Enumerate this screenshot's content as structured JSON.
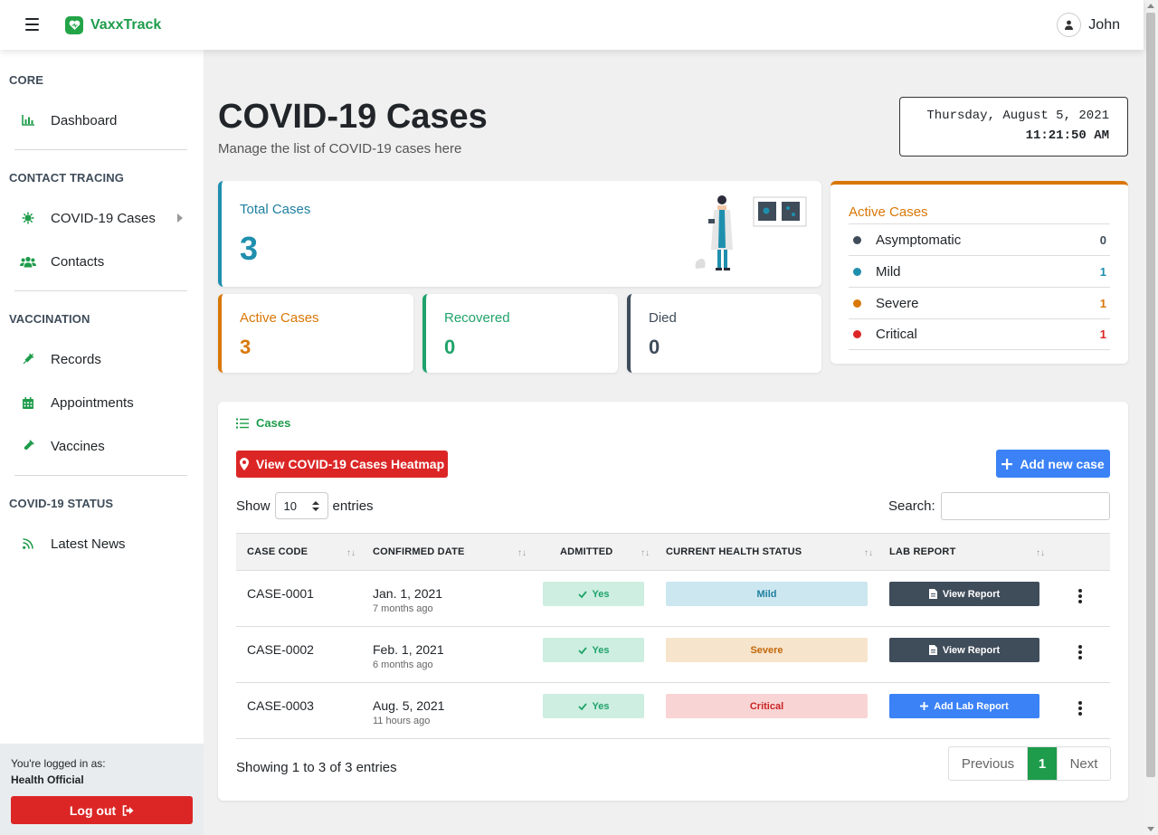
{
  "app": {
    "brand": "VaxxTrack",
    "user_name": "John"
  },
  "sidebar": {
    "sections": [
      {
        "heading": "CORE"
      },
      {
        "heading": "CONTACT TRACING"
      },
      {
        "heading": "VACCINATION"
      },
      {
        "heading": "COVID-19 STATUS"
      }
    ],
    "items": [
      {
        "label": "Dashboard",
        "icon": "chart-bar-icon"
      },
      {
        "label": "COVID-19 Cases",
        "icon": "virus-icon"
      },
      {
        "label": "Contacts",
        "icon": "users-icon"
      },
      {
        "label": "Records",
        "icon": "syringe-icon"
      },
      {
        "label": "Appointments",
        "icon": "calendar-icon"
      },
      {
        "label": "Vaccines",
        "icon": "vial-icon"
      },
      {
        "label": "Latest News",
        "icon": "rss-icon"
      }
    ],
    "footer": {
      "logged_in_label": "You're logged in as:",
      "role": "Health Official",
      "logout_label": "Log out"
    }
  },
  "header": {
    "title": "COVID-19 Cases",
    "subtitle": "Manage the list of COVID-19 cases here",
    "clock_date": "Thursday, August 5, 2021",
    "clock_time": "11:21:50 AM"
  },
  "stats": {
    "total": {
      "label": "Total Cases",
      "value": "3"
    },
    "active": {
      "label": "Active Cases",
      "value": "3"
    },
    "recovered": {
      "label": "Recovered",
      "value": "0"
    },
    "died": {
      "label": "Died",
      "value": "0"
    }
  },
  "active_breakdown": {
    "title": "Active Cases",
    "rows": [
      {
        "name": "Asymptomatic",
        "count": "0",
        "color": "#3f4c5a"
      },
      {
        "name": "Mild",
        "count": "1",
        "color": "#1f8fae"
      },
      {
        "name": "Severe",
        "count": "1",
        "color": "#d97706"
      },
      {
        "name": "Critical",
        "count": "1",
        "color": "#dc2626"
      }
    ]
  },
  "cases": {
    "title": "Cases",
    "heatmap_label": "View COVID-19 Cases Heatmap",
    "add_label": "Add new case",
    "show_label": "Show",
    "entries_value": "10",
    "entries_label": "entries",
    "search_label": "Search:",
    "columns": [
      "CASE CODE",
      "CONFIRMED DATE",
      "ADMITTED",
      "CURRENT HEALTH STATUS",
      "LAB REPORT"
    ],
    "rows": [
      {
        "code": "CASE-0001",
        "date": "Jan. 1, 2021",
        "ago": "7 months ago",
        "admitted": "Yes",
        "status": "Mild",
        "report": "View Report"
      },
      {
        "code": "CASE-0002",
        "date": "Feb. 1, 2021",
        "ago": "6 months ago",
        "admitted": "Yes",
        "status": "Severe",
        "report": "View Report"
      },
      {
        "code": "CASE-0003",
        "date": "Aug. 5, 2021",
        "ago": "11 hours ago",
        "admitted": "Yes",
        "status": "Critical",
        "report": "Add Lab Report"
      }
    ],
    "showing": "Showing 1 to 3 of 3 entries",
    "pagination": {
      "prev": "Previous",
      "page": "1",
      "next": "Next"
    }
  }
}
